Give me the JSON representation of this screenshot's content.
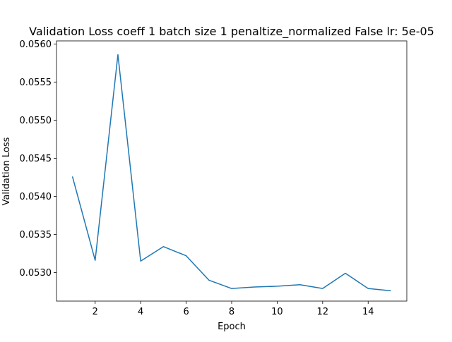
{
  "chart_data": {
    "type": "line",
    "title": "Validation Loss coeff 1 batch size 1 penaltize_normalized False lr: 5e-05",
    "xlabel": "Epoch",
    "ylabel": "Validation Loss",
    "x": [
      1,
      2,
      3,
      4,
      5,
      6,
      7,
      8,
      9,
      10,
      11,
      12,
      13,
      14,
      15
    ],
    "series": [
      {
        "color": "#1f77b4",
        "values": [
          0.05426,
          0.05316,
          0.05586,
          0.05315,
          0.05334,
          0.05322,
          0.0529,
          0.05279,
          0.05281,
          0.05282,
          0.05284,
          0.05279,
          0.05299,
          0.05279,
          0.05276
        ]
      }
    ],
    "xlim": [
      0.3,
      15.7
    ],
    "ylim": [
      0.052625,
      0.05604
    ],
    "xticks": [
      2,
      4,
      6,
      8,
      10,
      12,
      14
    ],
    "xtick_labels": [
      "2",
      "4",
      "6",
      "8",
      "10",
      "12",
      "14"
    ],
    "yticks": [
      0.053,
      0.0535,
      0.054,
      0.0545,
      0.055,
      0.0555,
      0.056
    ],
    "ytick_labels": [
      "0.0530",
      "0.0535",
      "0.0540",
      "0.0545",
      "0.0550",
      "0.0555",
      "0.0560"
    ],
    "grid": false,
    "legend": false
  }
}
